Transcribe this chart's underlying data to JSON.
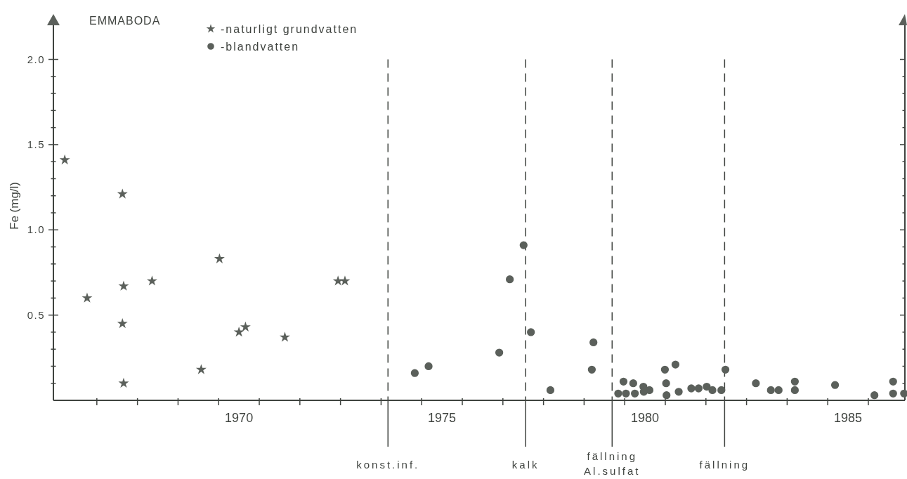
{
  "chart_data": {
    "type": "scatter",
    "title": "EMMABODA",
    "ylabel": "Fe (mg/l)",
    "xlim": [
      1965.93,
      1986.9
    ],
    "xticks": [
      {
        "value": 1967,
        "label": null
      },
      {
        "value": 1968,
        "label": null
      },
      {
        "value": 1969,
        "label": null
      },
      {
        "value": 1970,
        "label": null
      },
      {
        "value": 1970.5,
        "label": "1970"
      },
      {
        "value": 1971,
        "label": null
      },
      {
        "value": 1972,
        "label": null
      },
      {
        "value": 1973,
        "label": null
      },
      {
        "value": 1974,
        "label": null
      },
      {
        "value": 1975,
        "label": null
      },
      {
        "value": 1975.5,
        "label": "1975"
      },
      {
        "value": 1976,
        "label": null
      },
      {
        "value": 1977,
        "label": null
      },
      {
        "value": 1978,
        "label": null
      },
      {
        "value": 1979,
        "label": null
      },
      {
        "value": 1980,
        "label": null
      },
      {
        "value": 1980.5,
        "label": "1980"
      },
      {
        "value": 1981,
        "label": null
      },
      {
        "value": 1982,
        "label": null
      },
      {
        "value": 1983,
        "label": null
      },
      {
        "value": 1984,
        "label": null
      },
      {
        "value": 1985,
        "label": null
      },
      {
        "value": 1985.5,
        "label": "1985"
      },
      {
        "value": 1986,
        "label": null
      }
    ],
    "ylim": [
      0,
      2.2
    ],
    "yticks": [
      {
        "value": 0.1,
        "label": null
      },
      {
        "value": 0.2,
        "label": null
      },
      {
        "value": 0.3,
        "label": null
      },
      {
        "value": 0.4,
        "label": null
      },
      0.5,
      {
        "value": 0.6,
        "label": null
      },
      {
        "value": 0.7,
        "label": null
      },
      {
        "value": 0.8,
        "label": null
      },
      {
        "value": 0.9,
        "label": null
      },
      {
        "value": 1,
        "label": "1.0"
      },
      {
        "value": 1.1,
        "label": null
      },
      {
        "value": 1.2,
        "label": null
      },
      {
        "value": 1.3,
        "label": null
      },
      {
        "value": 1.4,
        "label": null
      },
      1.5,
      {
        "value": 1.6,
        "label": null
      },
      {
        "value": 1.7,
        "label": null
      },
      {
        "value": 1.8,
        "label": null
      },
      {
        "value": 1.9,
        "label": null
      },
      {
        "value": 2,
        "label": "2.0"
      }
    ],
    "legend": "top left",
    "series": [
      {
        "name": "-naturligt grundvatten",
        "color": "#5b605b",
        "marker": "star",
        "x": [
          1966.21,
          1967.63,
          1966.76,
          1967.66,
          1968.36,
          1967.63,
          1967.66,
          1970.02,
          1969.57,
          1970.5,
          1970.66,
          1971.63,
          1972.94,
          1973.11
        ],
        "values": [
          1.41,
          1.21,
          0.6,
          0.67,
          0.7,
          0.45,
          0.1,
          0.83,
          0.18,
          0.4,
          0.43,
          0.37,
          0.7,
          0.7
        ]
      },
      {
        "name": "-blandvatten",
        "color": "#5b605b",
        "marker": "circle",
        "x": [
          1974.83,
          1975.17,
          1976.91,
          1977.17,
          1977.51,
          1977.69,
          1978.17,
          1979.23,
          1979.19,
          1979.84,
          1980.03,
          1979.97,
          1980.21,
          1980.25,
          1980.46,
          1980.47,
          1980.61,
          1980.99,
          1981.02,
          1981.03,
          1981.25,
          1981.33,
          1981.64,
          1981.82,
          1982.02,
          1982.16,
          1982.38,
          1982.48,
          1983.23,
          1983.6,
          1983.79,
          1984.19,
          1984.19,
          1985.18,
          1986.15,
          1986.61,
          1986.61,
          1986.88
        ],
        "values": [
          0.16,
          0.2,
          0.28,
          0.71,
          0.91,
          0.4,
          0.06,
          0.34,
          0.18,
          0.04,
          0.04,
          0.11,
          0.1,
          0.04,
          0.08,
          0.05,
          0.06,
          0.18,
          0.1,
          0.03,
          0.21,
          0.05,
          0.07,
          0.07,
          0.08,
          0.06,
          0.06,
          0.18,
          0.1,
          0.06,
          0.06,
          0.11,
          0.06,
          0.09,
          0.03,
          0.11,
          0.04,
          0.04
        ]
      }
    ],
    "ref_lines": [
      {
        "axis": "x",
        "value": 1974.17,
        "label": "konst.inf.",
        "line_style": "dashed"
      },
      {
        "axis": "x",
        "value": 1977.56,
        "label": "kalk",
        "line_style": "dashed"
      },
      {
        "axis": "x",
        "value": 1979.69,
        "label": "fällning\nAl.sulfat",
        "line_style": "dashed"
      },
      {
        "axis": "x",
        "value": 1982.46,
        "label": "fällning",
        "line_style": "dashed"
      }
    ]
  }
}
